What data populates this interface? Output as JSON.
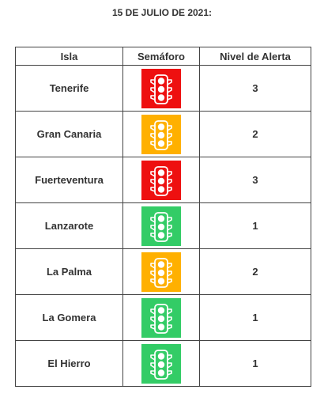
{
  "title": "15 DE JULIO DE 2021:",
  "table": {
    "headers": [
      "Isla",
      "Semáforo",
      "Nivel de Alerta"
    ],
    "rows": [
      {
        "isla": "Tenerife",
        "semaforo_color": "#ee1010",
        "semaforo_icon": "traffic-light-icon",
        "nivel": "3"
      },
      {
        "isla": "Gran Canaria",
        "semaforo_color": "#ffb000",
        "semaforo_icon": "traffic-light-icon",
        "nivel": "2"
      },
      {
        "isla": "Fuerteventura",
        "semaforo_color": "#ee1010",
        "semaforo_icon": "traffic-light-icon",
        "nivel": "3"
      },
      {
        "isla": "Lanzarote",
        "semaforo_color": "#33cc66",
        "semaforo_icon": "traffic-light-icon",
        "nivel": "1"
      },
      {
        "isla": "La Palma",
        "semaforo_color": "#ffb000",
        "semaforo_icon": "traffic-light-icon",
        "nivel": "2"
      },
      {
        "isla": "La Gomera",
        "semaforo_color": "#33cc66",
        "semaforo_icon": "traffic-light-icon",
        "nivel": "1"
      },
      {
        "isla": "El Hierro",
        "semaforo_color": "#33cc66",
        "semaforo_icon": "traffic-light-icon",
        "nivel": "1"
      }
    ]
  }
}
